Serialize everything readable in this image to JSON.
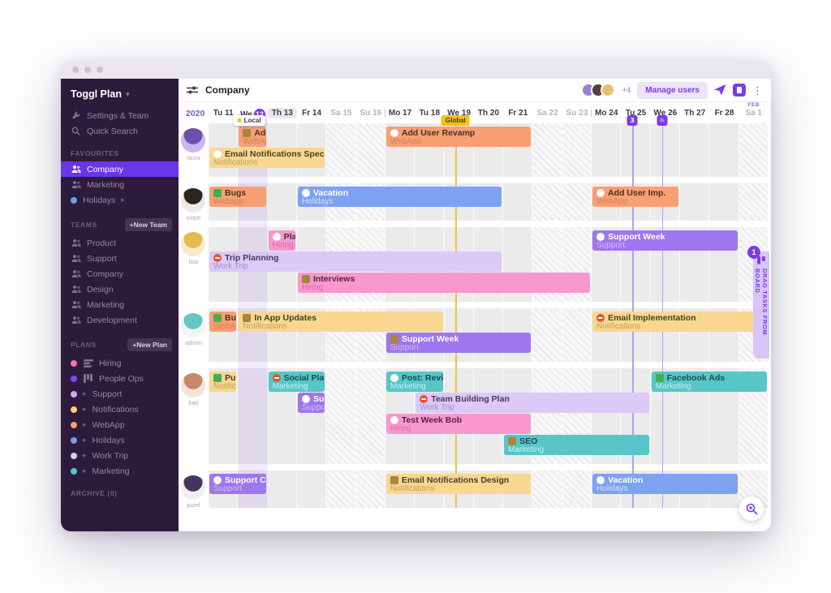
{
  "window": {
    "title_dots": 3
  },
  "sidebar": {
    "brand": "Toggl Plan",
    "top_items": [
      {
        "icon": "wrench-icon",
        "label": "Settings & Team"
      },
      {
        "icon": "search-icon",
        "label": "Quick Search"
      }
    ],
    "sections": [
      {
        "title": "FAVOURITES",
        "items": [
          {
            "icon": "people",
            "label": "Company",
            "selected": true
          },
          {
            "icon": "people",
            "label": "Marketing"
          },
          {
            "dot": "#6f9ff2",
            "label": "Holidays",
            "arrow": "after"
          }
        ]
      },
      {
        "title": "TEAMS",
        "action": "+New Team",
        "items": [
          {
            "icon": "people",
            "label": "Product"
          },
          {
            "icon": "people",
            "label": "Support"
          },
          {
            "icon": "people",
            "label": "Company"
          },
          {
            "icon": "people",
            "label": "Design"
          },
          {
            "icon": "people",
            "label": "Marketing"
          },
          {
            "icon": "people",
            "label": "Development"
          }
        ]
      },
      {
        "title": "PLANS",
        "action": "+New Plan",
        "items": [
          {
            "dot": "#f670b7",
            "icon": "rows",
            "label": "Hiring"
          },
          {
            "dot": "#8b45f7",
            "icon": "kanban",
            "label": "People Ops"
          },
          {
            "dot": "#c9a8f5",
            "arrow": "before",
            "label": "Support"
          },
          {
            "dot": "#f8cf72",
            "arrow": "before",
            "label": "Notifications"
          },
          {
            "dot": "#f89f73",
            "arrow": "before",
            "label": "WebApp"
          },
          {
            "dot": "#76a3f3",
            "arrow": "before",
            "label": "Holidays"
          },
          {
            "dot": "#dcc6f9",
            "arrow": "before",
            "label": "Work Trip"
          },
          {
            "dot": "#57c6c9",
            "arrow": "before",
            "label": "Marketing"
          }
        ]
      },
      {
        "title": "ARCHIVE (0)",
        "items": []
      }
    ]
  },
  "header": {
    "title": "Company",
    "avatars": [
      "#9b7fd4",
      "#54433a",
      "#e8c06a"
    ],
    "more": "+4",
    "manage_label": "Manage users"
  },
  "timeline": {
    "year": "2020",
    "days": [
      {
        "label": "Tu 11"
      },
      {
        "label": "We 12",
        "today": true,
        "badge": {
          "type": "local",
          "text": "Local"
        }
      },
      {
        "label": "Th 13",
        "highlight": true
      },
      {
        "label": "Fr 14"
      },
      {
        "label": "Sa 15",
        "weekend": true
      },
      {
        "label": "Su 16",
        "weekend": true
      },
      {
        "label": "Mo 17",
        "divider": true
      },
      {
        "label": "Tu 18"
      },
      {
        "label": "We 19",
        "badge": {
          "type": "global",
          "text": "Global"
        }
      },
      {
        "label": "Th 20"
      },
      {
        "label": "Fr 21"
      },
      {
        "label": "Sa 22",
        "weekend": true
      },
      {
        "label": "Su 23",
        "weekend": true
      },
      {
        "label": "Mo 24",
        "divider": true
      },
      {
        "label": "Tu 25",
        "badge": {
          "type": "count",
          "text": "3"
        }
      },
      {
        "label": "We 26",
        "badge": {
          "type": "sun",
          "text": "☼"
        }
      },
      {
        "label": "Th 27"
      },
      {
        "label": "Fr 28"
      },
      {
        "label": "Sa 1",
        "weekend": true,
        "month": "FEB"
      }
    ]
  },
  "palette": {
    "orange": {
      "bg": "#f89f73",
      "title": "#463322",
      "sub": "#cd8558"
    },
    "yellow": {
      "bg": "#f8d88f",
      "title": "#4a3e24",
      "sub": "#c0a05e"
    },
    "blue": {
      "bg": "#7ea2f2",
      "title": "#ffffff",
      "sub": "#d3e0fb"
    },
    "pink": {
      "bg": "#f998cd",
      "title": "#4c2a3e",
      "sub": "#cf6fae"
    },
    "purple": {
      "bg": "#9e77ee",
      "title": "#ffffff",
      "sub": "#cfbaf5"
    },
    "lilac": {
      "bg": "#dcc8f9",
      "title": "#463a58",
      "sub": "#a78dce"
    },
    "teal": {
      "bg": "#57c6c9",
      "title": "#1d4a4c",
      "sub": "#cdefef"
    }
  },
  "rows": [
    {
      "name": "laura",
      "avatar": {
        "bg": "#c9b8f0",
        "hair": "#6d4fae"
      },
      "lines": 2,
      "tasks": [
        {
          "line": 0,
          "start": 1,
          "span": 1,
          "color": "orange",
          "icon": "card",
          "title": "Add",
          "subtitle": "WebAp"
        },
        {
          "line": 0,
          "start": 6,
          "span": 5,
          "color": "orange",
          "icon": "comment",
          "title": "Add User Revamp",
          "subtitle": "WebApp"
        },
        {
          "line": 1,
          "start": 0,
          "span": 4,
          "color": "yellow",
          "icon": "comment",
          "title": "Email Notifications Spec",
          "subtitle": "Notifications"
        }
      ]
    },
    {
      "name": "mitch",
      "avatar": {
        "bg": "#efe9e3",
        "hair": "#2e241e"
      },
      "lines": 1,
      "tasks": [
        {
          "line": 0,
          "start": 0,
          "span": 2,
          "color": "orange",
          "icon": "check",
          "title": "Bugs",
          "subtitle": "Webapp"
        },
        {
          "line": 0,
          "start": 3,
          "span": 7,
          "color": "blue",
          "icon": "comment",
          "title": "Vacation",
          "subtitle": "Holidays"
        },
        {
          "line": 0,
          "start": 13,
          "span": 3,
          "color": "orange",
          "icon": "comment",
          "title": "Add User Imp.",
          "subtitle": "WebApp"
        }
      ]
    },
    {
      "name": "lisa",
      "avatar": {
        "bg": "#f7ebcb",
        "hair": "#e5ba4e"
      },
      "lines": 3,
      "tasks": [
        {
          "line": 0,
          "start": 2,
          "span": 1,
          "color": "pink",
          "icon": "comment",
          "title": "Plan",
          "subtitle": "Hiring"
        },
        {
          "line": 0,
          "start": 13,
          "span": 5,
          "color": "purple",
          "icon": "comment",
          "title": "Support Week",
          "subtitle": "Support"
        },
        {
          "line": 1,
          "start": 0,
          "span": 10,
          "color": "lilac",
          "icon": "blocked",
          "title": "Trip Planning",
          "subtitle": "Work Trip"
        },
        {
          "line": 2,
          "start": 3,
          "span": 10,
          "color": "pink",
          "icon": "card",
          "title": "Interviews",
          "subtitle": "Hiring"
        }
      ]
    },
    {
      "name": "adrien",
      "avatar": {
        "bg": "#eef5f5",
        "hair": "#63c8c4"
      },
      "lines": 2,
      "tasks": [
        {
          "line": 0,
          "start": 0,
          "span": 1,
          "color": "orange",
          "icon": "check",
          "title": "Bugs",
          "subtitle": "WebAp"
        },
        {
          "line": 0,
          "start": 1,
          "span": 7,
          "color": "yellow",
          "icon": "card",
          "title": "In App Updates",
          "subtitle": "Notifications"
        },
        {
          "line": 0,
          "start": 13,
          "span": 6,
          "color": "yellow",
          "icon": "blocked",
          "title": "Email Implementation",
          "subtitle": "Notifications"
        },
        {
          "line": 1,
          "start": 6,
          "span": 5,
          "color": "purple",
          "icon": "card",
          "title": "Support Week",
          "subtitle": "Support"
        }
      ]
    },
    {
      "name": "kati",
      "avatar": {
        "bg": "#f6e2dc",
        "hair": "#c7886a"
      },
      "lines": 4,
      "tasks": [
        {
          "line": 0,
          "start": 0,
          "span": 1,
          "color": "yellow",
          "icon": "check",
          "title": "Pub",
          "subtitle": "Notifica"
        },
        {
          "line": 0,
          "start": 2,
          "span": 2,
          "color": "teal",
          "icon": "blocked",
          "title": "Social Plan",
          "subtitle": "Marketing"
        },
        {
          "line": 0,
          "start": 6,
          "span": 2,
          "color": "teal",
          "icon": "circle",
          "title": "Post: Review",
          "subtitle": "Marketing"
        },
        {
          "line": 0,
          "start": 15,
          "span": 4,
          "color": "teal",
          "icon": "check",
          "title": "Facebook Ads",
          "subtitle": "Marketing"
        },
        {
          "line": 1,
          "start": 3,
          "span": 1,
          "color": "purple",
          "icon": "circle",
          "title": "Supp",
          "subtitle": "Suppor"
        },
        {
          "line": 1,
          "start": 7,
          "span": 8,
          "color": "lilac",
          "icon": "blocked",
          "title": "Team Building Plan",
          "subtitle": "Work Trip"
        },
        {
          "line": 2,
          "start": 6,
          "span": 5,
          "color": "pink",
          "icon": "comment",
          "title": "Test Week Bob",
          "subtitle": "Hiring"
        },
        {
          "line": 3,
          "start": 10,
          "span": 5,
          "color": "teal",
          "icon": "card",
          "title": "SEO",
          "subtitle": "Marketing"
        }
      ]
    },
    {
      "name": "jozef",
      "avatar": {
        "bg": "#efedf2",
        "hair": "#46345e"
      },
      "lines": 1,
      "tasks": [
        {
          "line": 0,
          "start": 0,
          "span": 2,
          "color": "purple",
          "icon": "circle",
          "title": "Support Cover",
          "subtitle": "Support"
        },
        {
          "line": 0,
          "start": 6,
          "span": 5,
          "color": "yellow",
          "icon": "card",
          "title": "Email Notifications Design",
          "subtitle": "Notifications"
        },
        {
          "line": 0,
          "start": 13,
          "span": 5,
          "color": "blue",
          "icon": "circle",
          "title": "Vacation",
          "subtitle": "Holidays"
        }
      ]
    }
  ],
  "board_tab": {
    "label": "DRAG TASKS FROM BOARD",
    "count": "1"
  }
}
